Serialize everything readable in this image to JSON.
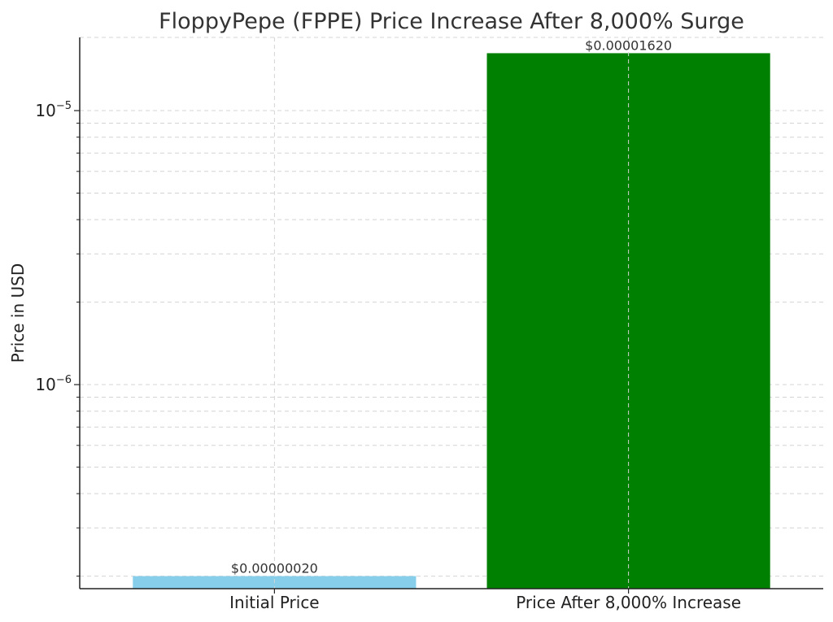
{
  "chart_data": {
    "type": "bar",
    "title": "FloppyPepe (FPPE) Price Increase After 8,000% Surge",
    "xlabel": "",
    "ylabel": "Price in USD",
    "yscale": "log",
    "ylim": [
      1.8e-07,
      1.85e-05
    ],
    "grid": true,
    "categories": [
      "Initial Price",
      "Price After 8,000% Increase"
    ],
    "values": [
      2e-07,
      1.62e-05
    ],
    "colors": [
      "#87ceeb",
      "#008000"
    ],
    "data_labels": [
      "$0.00000020",
      "$0.00001620"
    ],
    "y_ticks": [
      {
        "value": 1e-06,
        "base": "10",
        "exp": "−6"
      },
      {
        "value": 1e-05,
        "base": "10",
        "exp": "−5"
      }
    ]
  }
}
